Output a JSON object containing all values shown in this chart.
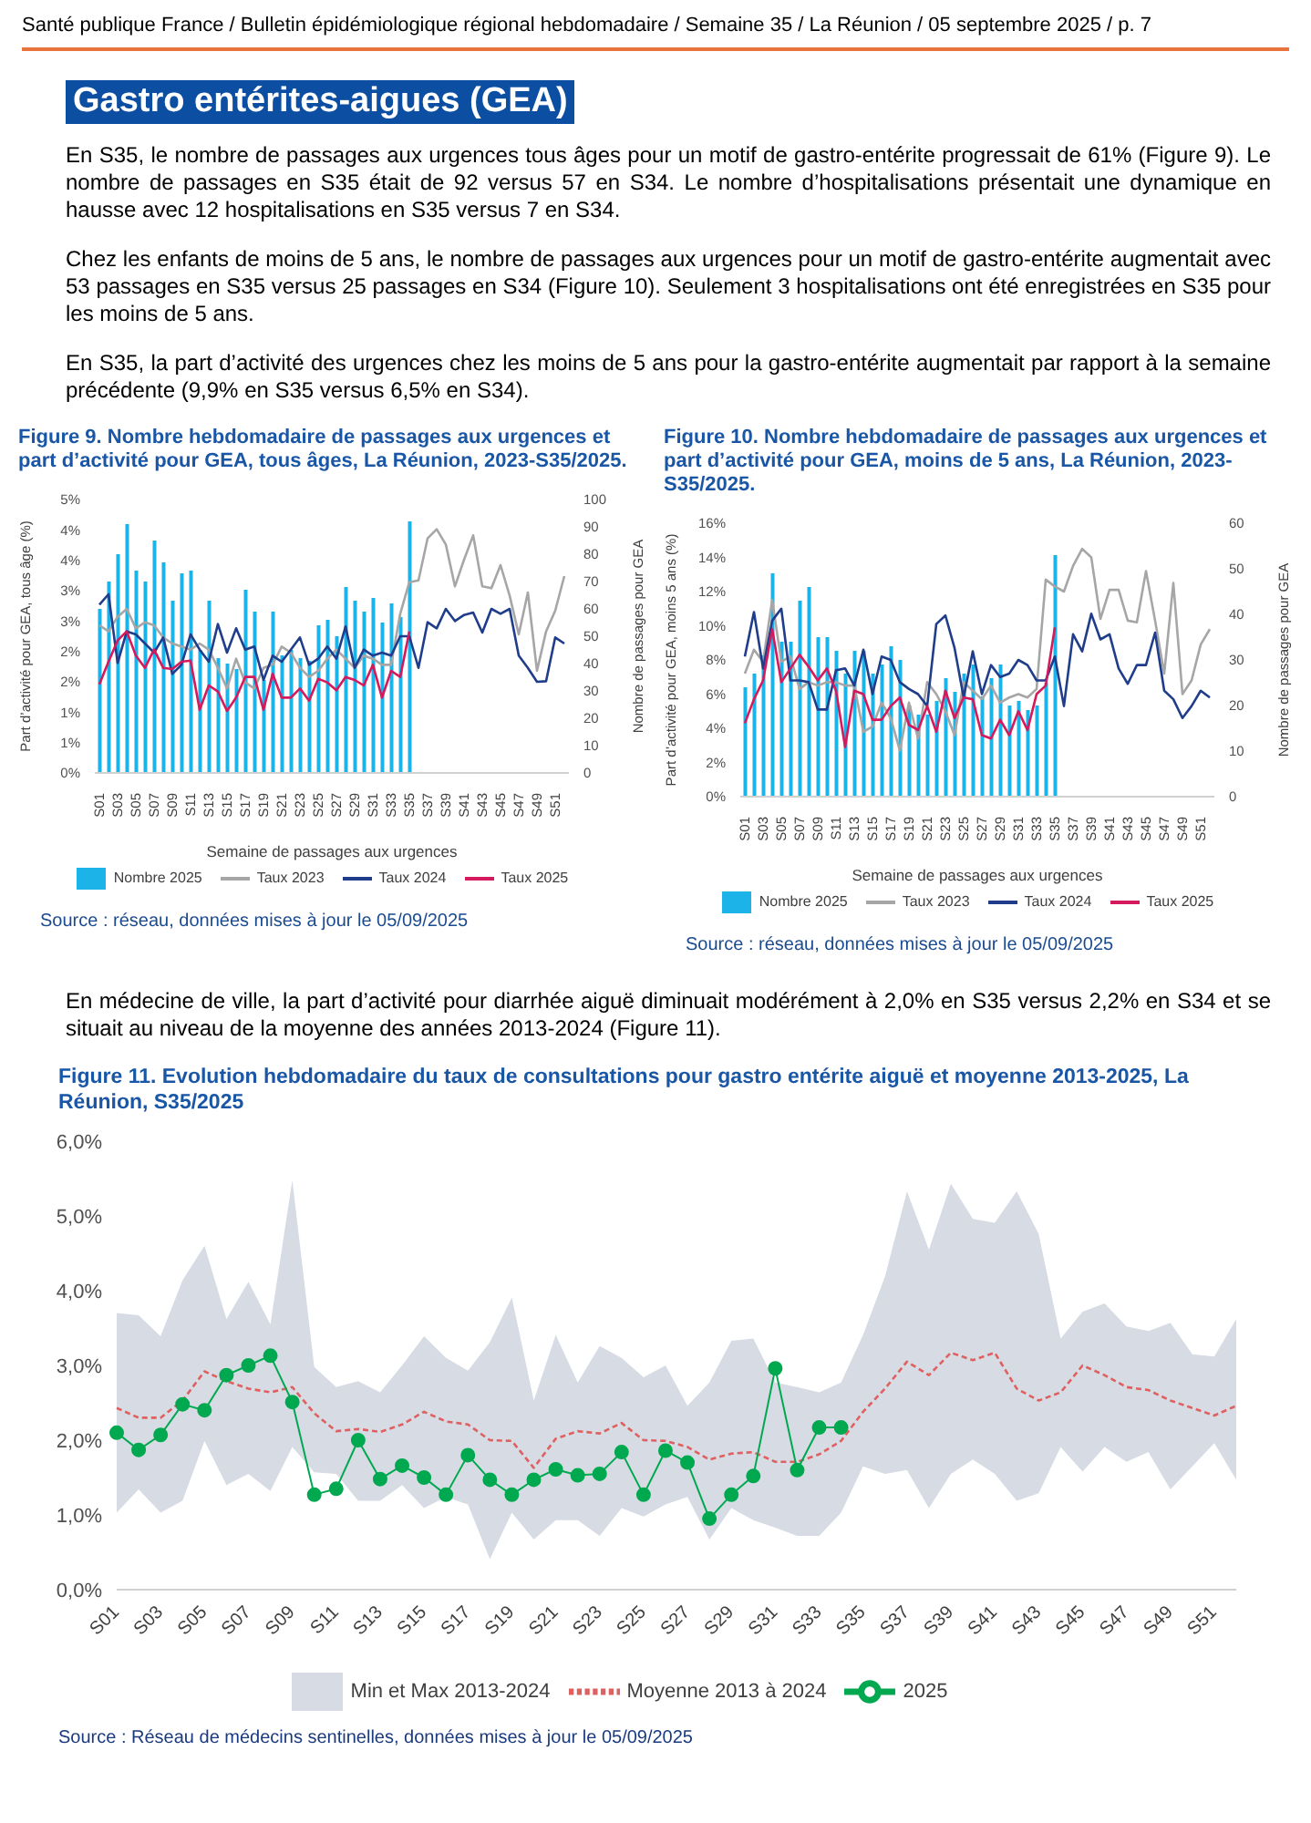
{
  "chart_data": [
    {
      "type": "other",
      "title": "Gastro entérites-aigues (GEA)",
      "annotations": [
        "Santé publique France / Bulletin épidémiologique régional hebdomadaire / Semaine 35 / La Réunion / 05 septembre 2025 / p. 7",
        "En S35, le nombre de passages aux urgences tous âges pour un motif de gastro-entérite progressait de 61% (Figure 9). Le nombre de passages en S35 était de 92 versus 57 en S34. Le nombre d’hospitalisations présentait une dynamique en hausse avec 12 hospitalisations en S35 versus 7 en S34.",
        "Chez les enfants de moins de 5 ans, le nombre de passages aux urgences pour un motif de gastro-entérite augmentait avec 53 passages en S35 versus 25 passages en S34 (Figure 10). Seulement 3 hospitalisations ont été enregistrées en S35 pour les moins de 5 ans.",
        "En S35, la part d’activité des urgences chez les moins de 5 ans pour la gastro-entérite augmentait par rapport à la semaine précédente (9,9% en S35 versus 6,5% en S34)."
      ]
    },
    {
      "type": "line",
      "title": "Figure 9. Nombre hebdomadaire de passages aux urgences et part d’activité pour GEA, tous âges, La Réunion, 2023-S35/2025.",
      "xlabel": "Semaine de passages aux urgences",
      "ylabel": "Part d’activité pour GEA, tous âge (%)",
      "y2label": "Nombre de passages pour GEA",
      "legend": "bottom",
      "categories": [
        "S01",
        null,
        "S03",
        null,
        "S05",
        null,
        "S07",
        null,
        "S09",
        null,
        "S11",
        null,
        "S13",
        null,
        "S15",
        null,
        "S17",
        null,
        "S19",
        null,
        "S21",
        null,
        "S23",
        null,
        "S25",
        null,
        "S27",
        null,
        "S29",
        null,
        "S31",
        null,
        "S33",
        null,
        "S35",
        null,
        "S37",
        null,
        "S39",
        null,
        "S41",
        null,
        "S43",
        null,
        "S45",
        null,
        "S47",
        null,
        "S49",
        null,
        "S51",
        null
      ],
      "ylim": [
        0,
        4.5
      ],
      "yticks": [
        {
          "value": 0,
          "label": "0%"
        },
        {
          "value": 0.5,
          "label": "1%"
        },
        {
          "value": 1,
          "label": "1%"
        },
        {
          "value": 1.5,
          "label": "2%"
        },
        {
          "value": 2,
          "label": "2%"
        },
        {
          "value": 2.5,
          "label": "3%"
        },
        {
          "value": 3,
          "label": "3%"
        },
        {
          "value": 3.5,
          "label": "4%"
        },
        {
          "value": 4,
          "label": "4%"
        },
        {
          "value": 4.5,
          "label": "5%"
        }
      ],
      "y2lim": [
        0,
        100
      ],
      "y2ticks": [
        0,
        10,
        20,
        30,
        40,
        50,
        60,
        70,
        80,
        90,
        100
      ],
      "series": [
        {
          "name": "Nombre 2025",
          "type": "bar",
          "axis": "y2",
          "color": "#1cb3e8",
          "values": [
            60,
            70,
            80,
            91,
            74,
            70,
            85,
            77,
            63,
            73,
            74,
            45,
            63,
            42,
            40,
            38,
            67,
            59,
            34,
            59,
            43,
            45,
            42,
            41,
            54,
            56,
            50,
            68,
            63,
            59,
            64,
            55,
            62,
            57,
            92,
            null,
            null,
            null,
            null,
            null,
            null,
            null,
            null,
            null,
            null,
            null,
            null,
            null,
            null,
            null,
            null,
            null
          ]
        },
        {
          "name": "Taux 2023",
          "color": "#a6a6a6",
          "values": [
            2.43,
            2.33,
            2.57,
            2.7,
            2.38,
            2.48,
            2.43,
            2.23,
            2.13,
            2.08,
            2.03,
            2.13,
            2.03,
            1.73,
            1.39,
            1.88,
            1.49,
            1.39,
            1.73,
            1.78,
            2.08,
            1.98,
            1.73,
            1.58,
            1.68,
            1.88,
            2.03,
            1.88,
            1.73,
            1.93,
            1.88,
            1.78,
            1.78,
            2.62,
            3.14,
            3.17,
            3.86,
            4.01,
            3.76,
            3.07,
            3.51,
            3.91,
            3.07,
            3.04,
            3.42,
            2.92,
            2.28,
            2.97,
            1.68,
            2.33,
            2.67,
            3.24
          ]
        },
        {
          "name": "Taux 2024",
          "color": "#1f3d8a",
          "values": [
            2.77,
            2.94,
            1.81,
            2.33,
            2.28,
            2.13,
            1.98,
            2.23,
            1.63,
            1.78,
            2.28,
            2.03,
            1.83,
            2.45,
            1.98,
            2.38,
            2.03,
            2.08,
            1.53,
            1.93,
            1.83,
            2.03,
            2.23,
            1.78,
            1.88,
            2.08,
            1.88,
            2.41,
            1.73,
            2.03,
            1.93,
            1.98,
            1.93,
            2.25,
            2.25,
            1.73,
            2.48,
            2.38,
            2.7,
            2.5,
            2.6,
            2.64,
            2.31,
            2.7,
            2.62,
            2.7,
            1.93,
            1.73,
            1.5,
            1.51,
            2.23,
            2.13
          ]
        },
        {
          "name": "Taux 2025",
          "color": "#d4195c",
          "values": [
            1.46,
            1.83,
            2.18,
            2.33,
            1.93,
            1.73,
            2.03,
            1.73,
            1.71,
            1.83,
            1.85,
            1.04,
            1.44,
            1.34,
            1.02,
            1.24,
            1.58,
            1.58,
            1.04,
            1.63,
            1.24,
            1.24,
            1.39,
            1.19,
            1.55,
            1.49,
            1.36,
            1.58,
            1.53,
            1.44,
            1.78,
            1.24,
            1.68,
            1.58,
            2.33,
            null,
            null,
            null,
            null,
            null,
            null,
            null,
            null,
            null,
            null,
            null,
            null,
            null,
            null,
            null,
            null,
            null
          ]
        }
      ],
      "annotations": [
        "Source : réseau, données mises à jour le 05/09/2025"
      ]
    },
    {
      "type": "line",
      "title": "Figure 10. Nombre hebdomadaire de passages aux urgences et part d’activité pour GEA, moins de 5 ans, La Réunion, 2023-S35/2025.",
      "xlabel": "Semaine de passages aux urgences",
      "ylabel": "Part d’activité pour GEA, moins 5 ans (%)",
      "y2label": "Nombre de passages pour GEA",
      "legend": "bottom",
      "categories": [
        "S01",
        null,
        "S03",
        null,
        "S05",
        null,
        "S07",
        null,
        "S09",
        null,
        "S11",
        null,
        "S13",
        null,
        "S15",
        null,
        "S17",
        null,
        "S19",
        null,
        "S21",
        null,
        "S23",
        null,
        "S25",
        null,
        "S27",
        null,
        "S29",
        null,
        "S31",
        null,
        "S33",
        null,
        "S35",
        null,
        "S37",
        null,
        "S39",
        null,
        "S41",
        null,
        "S43",
        null,
        "S45",
        null,
        "S47",
        null,
        "S49",
        null,
        "S51",
        null
      ],
      "ylim": [
        0,
        16
      ],
      "yticks": [
        {
          "value": 0,
          "label": "0%"
        },
        {
          "value": 2,
          "label": "2%"
        },
        {
          "value": 4,
          "label": "4%"
        },
        {
          "value": 6,
          "label": "6%"
        },
        {
          "value": 8,
          "label": "8%"
        },
        {
          "value": 10,
          "label": "10%"
        },
        {
          "value": 12,
          "label": "12%"
        },
        {
          "value": 14,
          "label": "14%"
        },
        {
          "value": 16,
          "label": "16%"
        }
      ],
      "y2lim": [
        0,
        60
      ],
      "y2ticks": [
        0,
        10,
        20,
        30,
        40,
        50,
        60
      ],
      "series": [
        {
          "name": "Nombre 2025",
          "type": "bar",
          "axis": "y2",
          "color": "#1cb3e8",
          "values": [
            24,
            27,
            31,
            49,
            34,
            34,
            43,
            46,
            35,
            35,
            32,
            27,
            32,
            32,
            27,
            29,
            33,
            30,
            20,
            18,
            18,
            21,
            26,
            23,
            27,
            29,
            22,
            26,
            29,
            20,
            21,
            19,
            20,
            25,
            53,
            null,
            null,
            null,
            null,
            null,
            null,
            null,
            null,
            null,
            null,
            null,
            null,
            null,
            null,
            null,
            null,
            null
          ]
        },
        {
          "name": "Taux 2023",
          "color": "#a6a6a6",
          "values": [
            7.2,
            8.6,
            7.9,
            11.5,
            7.9,
            8.2,
            6.3,
            6.7,
            6.5,
            6.7,
            6.7,
            6.5,
            6.5,
            3.8,
            4.1,
            5.5,
            4.6,
            2.7,
            5.5,
            3.4,
            6.7,
            6.0,
            5.0,
            3.6,
            6.7,
            6.2,
            5.7,
            6.5,
            5.5,
            5.8,
            6.0,
            5.8,
            6.3,
            12.7,
            12.3,
            12.0,
            13.5,
            14.5,
            14.0,
            10.4,
            12.1,
            12.1,
            10.3,
            10.2,
            13.2,
            10.3,
            7.2,
            12.5,
            6.0,
            6.8,
            8.9,
            9.8
          ]
        },
        {
          "name": "Taux 2024",
          "color": "#1f3d8a",
          "values": [
            8.2,
            10.8,
            7.5,
            10.3,
            11.0,
            6.8,
            6.8,
            6.7,
            5.1,
            5.1,
            7.4,
            7.5,
            6.5,
            8.6,
            6.0,
            8.2,
            8.0,
            6.7,
            6.3,
            6.0,
            5.3,
            10.1,
            10.6,
            8.7,
            5.8,
            8.5,
            6.0,
            7.7,
            7.0,
            7.2,
            8.0,
            7.7,
            6.8,
            6.8,
            8.2,
            5.3,
            9.5,
            8.5,
            10.7,
            9.2,
            9.5,
            7.5,
            6.6,
            7.7,
            7.7,
            9.6,
            6.2,
            5.7,
            4.6,
            5.3,
            6.2,
            5.8
          ]
        },
        {
          "name": "Taux 2025",
          "color": "#d4195c",
          "values": [
            4.3,
            5.7,
            6.8,
            9.8,
            6.7,
            7.5,
            8.3,
            7.6,
            6.8,
            7.5,
            6.2,
            2.9,
            6.2,
            6.0,
            4.5,
            4.5,
            5.3,
            5.8,
            4.2,
            3.9,
            5.3,
            3.8,
            6.2,
            4.6,
            5.8,
            5.7,
            3.6,
            3.4,
            4.5,
            3.6,
            5.0,
            3.9,
            6.0,
            6.5,
            9.9,
            null,
            null,
            null,
            null,
            null,
            null,
            null,
            null,
            null,
            null,
            null,
            null,
            null,
            null,
            null,
            null,
            null
          ]
        }
      ],
      "annotations": [
        "Source : réseau, données mises à jour le 05/09/2025"
      ]
    },
    {
      "type": "other",
      "annotations": [
        "En médecine de ville, la part d’activité pour diarrhée aiguë diminuait modérément à 2,0% en S35 versus 2,2% en S34 et se situait au niveau de la moyenne des années 2013-2024 (Figure 11)."
      ]
    },
    {
      "type": "line",
      "title": "Figure 11. Evolution hebdomadaire du taux de consultations pour gastro entérite aiguë et moyenne 2013-2025, La Réunion, S35/2025",
      "legend": "bottom",
      "categories": [
        "S01",
        null,
        "S03",
        null,
        "S05",
        null,
        "S07",
        null,
        "S09",
        null,
        "S11",
        null,
        "S13",
        null,
        "S15",
        null,
        "S17",
        null,
        "S19",
        null,
        "S21",
        null,
        "S23",
        null,
        "S25",
        null,
        "S27",
        null,
        "S29",
        null,
        "S31",
        null,
        "S33",
        null,
        "S35",
        null,
        "S37",
        null,
        "S39",
        null,
        "S41",
        null,
        "S43",
        null,
        "S45",
        null,
        "S47",
        null,
        "S49",
        null,
        "S51",
        null
      ],
      "ylim": [
        0,
        6
      ],
      "yticks": [
        {
          "value": 0,
          "label": "0,0%"
        },
        {
          "value": 1,
          "label": "1,0%"
        },
        {
          "value": 2,
          "label": "2,0%"
        },
        {
          "value": 3,
          "label": "3,0%"
        },
        {
          "value": 4,
          "label": "4,0%"
        },
        {
          "value": 5,
          "label": "5,0%"
        },
        {
          "value": 6,
          "label": "6,0%"
        }
      ],
      "series": [
        {
          "name": "Min et Max 2013-2024",
          "type": "area",
          "color": "#d6dbe4",
          "lower": [
            1.03,
            1.34,
            1.03,
            1.19,
            1.99,
            1.4,
            1.55,
            1.32,
            1.91,
            1.57,
            1.55,
            1.19,
            1.19,
            1.4,
            1.09,
            1.24,
            1.14,
            0.41,
            1.03,
            0.67,
            0.93,
            0.93,
            0.72,
            1.09,
            0.98,
            1.14,
            1.24,
            0.67,
            1.09,
            0.93,
            0.83,
            0.72,
            0.72,
            1.03,
            1.65,
            1.55,
            1.6,
            1.09,
            1.55,
            1.74,
            1.55,
            1.19,
            1.29,
            1.91,
            1.58,
            1.91,
            1.71,
            1.84,
            1.34,
            1.65,
            1.96,
            1.47
          ],
          "values": [
            null,
            null,
            null,
            null,
            null,
            null,
            null,
            null,
            null,
            null,
            null,
            null,
            null,
            null,
            null,
            null,
            null,
            null,
            null,
            null,
            null,
            null,
            null,
            null,
            null,
            null,
            null,
            null,
            null,
            null,
            null,
            null,
            null,
            null,
            null,
            null,
            null,
            null,
            null,
            null,
            null,
            null,
            null,
            null,
            null,
            null,
            null,
            null,
            null,
            null,
            null,
            null
          ],
          "upper": [
            3.7,
            3.67,
            3.39,
            4.14,
            4.6,
            3.62,
            4.12,
            3.55,
            5.48,
            2.98,
            2.71,
            2.79,
            2.64,
            3.0,
            3.39,
            3.1,
            2.93,
            3.31,
            3.91,
            2.53,
            3.41,
            2.77,
            3.26,
            3.1,
            2.84,
            3.0,
            2.46,
            2.77,
            3.33,
            3.36,
            2.77,
            2.71,
            2.64,
            2.77,
            3.41,
            4.19,
            5.33,
            4.55,
            5.43,
            4.96,
            4.91,
            5.33,
            4.76,
            3.36,
            3.72,
            3.83,
            3.52,
            3.46,
            3.57,
            3.15,
            3.12,
            3.62
          ]
        },
        {
          "name": "Moyenne 2013 à 2024",
          "color": "#e06060",
          "line_style": "dashed",
          "values": [
            2.43,
            2.3,
            2.3,
            2.53,
            2.92,
            2.79,
            2.69,
            2.64,
            2.71,
            2.36,
            2.12,
            2.15,
            2.11,
            2.21,
            2.38,
            2.25,
            2.21,
            2.0,
            1.99,
            1.63,
            2.02,
            2.12,
            2.09,
            2.23,
            2.0,
            1.99,
            1.91,
            1.74,
            1.82,
            1.84,
            1.71,
            1.71,
            1.81,
            1.99,
            2.38,
            2.69,
            3.05,
            2.87,
            3.17,
            3.07,
            3.17,
            2.69,
            2.53,
            2.64,
            3.0,
            2.87,
            2.71,
            2.67,
            2.53,
            2.43,
            2.33,
            2.46
          ]
        },
        {
          "name": "2025",
          "color": "#00a84f",
          "marker": "circle",
          "values": [
            2.1,
            1.87,
            2.07,
            2.48,
            2.4,
            2.87,
            3.0,
            3.13,
            2.51,
            1.27,
            1.35,
            2.0,
            1.48,
            1.66,
            1.5,
            1.27,
            1.8,
            1.47,
            1.27,
            1.47,
            1.61,
            1.53,
            1.55,
            1.84,
            1.27,
            1.86,
            1.7,
            0.95,
            1.27,
            1.52,
            2.96,
            1.6,
            2.17,
            2.17,
            null,
            null,
            null,
            null,
            null,
            null,
            null,
            null,
            null,
            null,
            null,
            null,
            null,
            null,
            null,
            null,
            null,
            null
          ]
        }
      ],
      "annotations": [
        "Source : Réseau de médecins sentinelles, données mises à jour le 05/09/2025"
      ]
    }
  ]
}
